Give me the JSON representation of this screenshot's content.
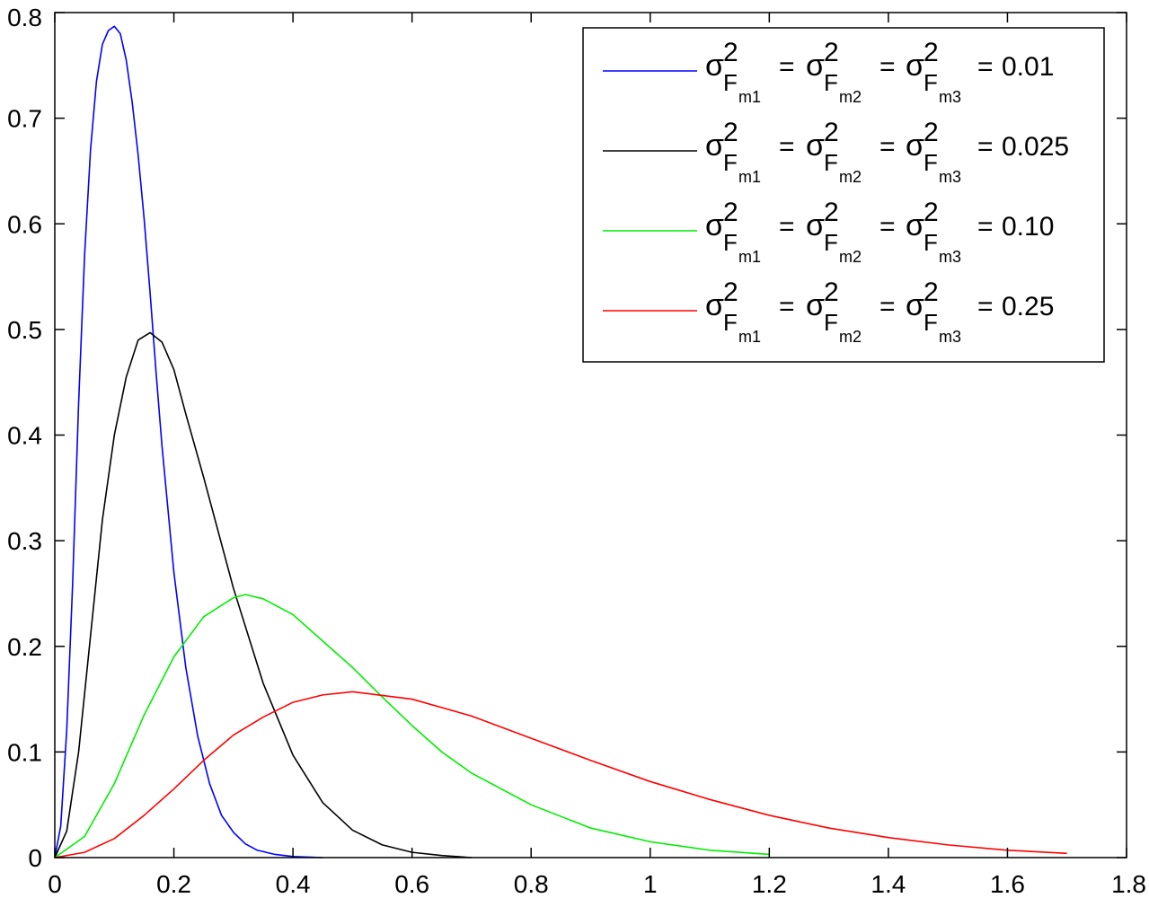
{
  "chart_data": {
    "type": "line",
    "xlim": [
      0,
      1.8
    ],
    "ylim": [
      0,
      0.8
    ],
    "x_ticks": [
      "0",
      "0.2",
      "0.4",
      "0.6",
      "0.8",
      "1",
      "1.2",
      "1.4",
      "1.6",
      "1.8"
    ],
    "y_ticks": [
      "0",
      "0.1",
      "0.2",
      "0.3",
      "0.4",
      "0.5",
      "0.6",
      "0.7",
      "0.8"
    ],
    "grid": false,
    "legend_position": "top-right",
    "legend_symbol": "σ",
    "legend_superscript": "2",
    "legend_base": "F",
    "legend_subscripts": [
      "m1",
      "m2",
      "m3"
    ],
    "legend_equals": "=",
    "series": [
      {
        "value_label": "0.01",
        "color": "#0000ff",
        "points": [
          [
            0,
            0
          ],
          [
            0.01,
            0.03
          ],
          [
            0.02,
            0.12
          ],
          [
            0.03,
            0.26
          ],
          [
            0.04,
            0.43
          ],
          [
            0.05,
            0.57
          ],
          [
            0.06,
            0.67
          ],
          [
            0.07,
            0.735
          ],
          [
            0.08,
            0.77
          ],
          [
            0.09,
            0.783
          ],
          [
            0.1,
            0.787
          ],
          [
            0.11,
            0.78
          ],
          [
            0.12,
            0.755
          ],
          [
            0.13,
            0.715
          ],
          [
            0.14,
            0.665
          ],
          [
            0.15,
            0.605
          ],
          [
            0.16,
            0.535
          ],
          [
            0.17,
            0.46
          ],
          [
            0.18,
            0.39
          ],
          [
            0.2,
            0.27
          ],
          [
            0.22,
            0.18
          ],
          [
            0.24,
            0.115
          ],
          [
            0.26,
            0.07
          ],
          [
            0.28,
            0.04
          ],
          [
            0.3,
            0.024
          ],
          [
            0.32,
            0.013
          ],
          [
            0.34,
            0.007
          ],
          [
            0.37,
            0.003
          ],
          [
            0.4,
            0.001
          ],
          [
            0.45,
            0
          ]
        ]
      },
      {
        "value_label": "0.025",
        "color": "#000000",
        "points": [
          [
            0,
            0
          ],
          [
            0.02,
            0.025
          ],
          [
            0.04,
            0.1
          ],
          [
            0.06,
            0.21
          ],
          [
            0.08,
            0.32
          ],
          [
            0.1,
            0.4
          ],
          [
            0.12,
            0.455
          ],
          [
            0.14,
            0.49
          ],
          [
            0.16,
            0.497
          ],
          [
            0.18,
            0.488
          ],
          [
            0.2,
            0.462
          ],
          [
            0.22,
            0.42
          ],
          [
            0.25,
            0.36
          ],
          [
            0.3,
            0.255
          ],
          [
            0.35,
            0.165
          ],
          [
            0.4,
            0.097
          ],
          [
            0.45,
            0.052
          ],
          [
            0.5,
            0.026
          ],
          [
            0.55,
            0.012
          ],
          [
            0.6,
            0.005
          ],
          [
            0.65,
            0.002
          ],
          [
            0.7,
            0
          ]
        ]
      },
      {
        "value_label": "0.10",
        "color": "#00ee00",
        "points": [
          [
            0,
            0
          ],
          [
            0.05,
            0.02
          ],
          [
            0.1,
            0.07
          ],
          [
            0.15,
            0.135
          ],
          [
            0.2,
            0.19
          ],
          [
            0.25,
            0.228
          ],
          [
            0.3,
            0.246
          ],
          [
            0.32,
            0.249
          ],
          [
            0.35,
            0.245
          ],
          [
            0.4,
            0.23
          ],
          [
            0.45,
            0.205
          ],
          [
            0.5,
            0.18
          ],
          [
            0.55,
            0.152
          ],
          [
            0.6,
            0.125
          ],
          [
            0.65,
            0.1
          ],
          [
            0.7,
            0.08
          ],
          [
            0.8,
            0.05
          ],
          [
            0.9,
            0.028
          ],
          [
            1.0,
            0.015
          ],
          [
            1.1,
            0.007
          ],
          [
            1.2,
            0.003
          ]
        ]
      },
      {
        "value_label": "0.25",
        "color": "#ff0000",
        "points": [
          [
            0,
            0
          ],
          [
            0.05,
            0.005
          ],
          [
            0.1,
            0.018
          ],
          [
            0.15,
            0.04
          ],
          [
            0.2,
            0.065
          ],
          [
            0.25,
            0.092
          ],
          [
            0.3,
            0.116
          ],
          [
            0.35,
            0.133
          ],
          [
            0.4,
            0.147
          ],
          [
            0.45,
            0.154
          ],
          [
            0.5,
            0.157
          ],
          [
            0.6,
            0.15
          ],
          [
            0.7,
            0.134
          ],
          [
            0.8,
            0.113
          ],
          [
            0.9,
            0.092
          ],
          [
            1.0,
            0.072
          ],
          [
            1.1,
            0.055
          ],
          [
            1.2,
            0.04
          ],
          [
            1.3,
            0.028
          ],
          [
            1.4,
            0.019
          ],
          [
            1.5,
            0.012
          ],
          [
            1.6,
            0.007
          ],
          [
            1.7,
            0.004
          ]
        ]
      }
    ]
  }
}
